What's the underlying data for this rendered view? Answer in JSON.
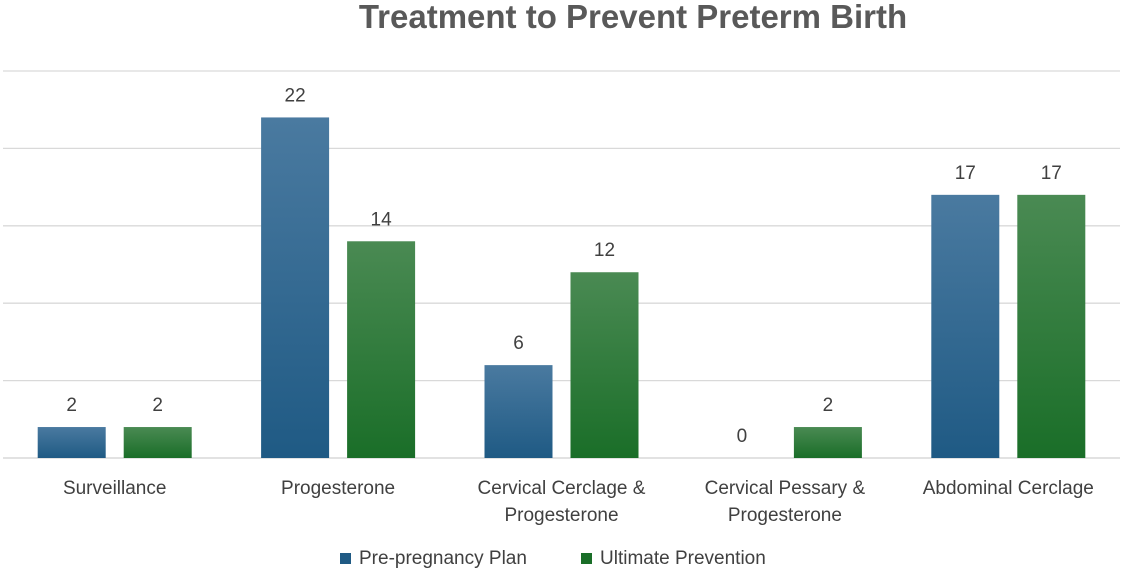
{
  "chart_data": {
    "type": "bar",
    "title": "Treatment to Prevent Preterm Birth",
    "categories": [
      [
        "Surveillance"
      ],
      [
        "Progesterone"
      ],
      [
        "Cervical Cerclage &",
        "Progesterone"
      ],
      [
        "Cervical Pessary &",
        "Progesterone"
      ],
      [
        "Abdominal Cerclage"
      ]
    ],
    "series": [
      {
        "name": "Pre-pregnancy Plan",
        "values": [
          2,
          22,
          6,
          0,
          17
        ],
        "color": "#1f5a84",
        "color_light": "#4a7aa0"
      },
      {
        "name": "Ultimate Prevention",
        "values": [
          2,
          14,
          12,
          2,
          17
        ],
        "color": "#1a6e28",
        "color_light": "#4a8a53"
      }
    ],
    "xlabel": "",
    "ylabel": "",
    "ylim": [
      0,
      25
    ],
    "grid": true,
    "legend": "bottom-center"
  }
}
